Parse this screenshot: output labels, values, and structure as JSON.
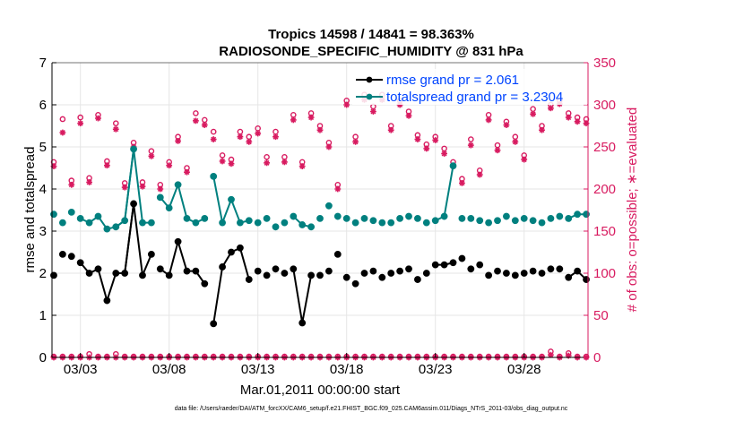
{
  "chart_data": {
    "type": "line",
    "title_line1": "Tropics 14598 / 14841 = 98.363%",
    "title_line2": "RADIOSONDE_SPECIFIC_HUMIDITY @ 831 hPa",
    "xlabel": "Mar.01,2011 00:00:00 start",
    "ylabel_left": "rmse and totalspread",
    "ylabel_right": "# of obs: o=possible; ∗=evaluated",
    "footer": "data file: /Users/raeder/DAI/ATM_forcXX/CAM6_setup/f.e21.FHIST_BGC.f09_025.CAM6assim.011/Diags_NTrS_2011-03/obs_diag_output.nc",
    "xlim": [
      1.4,
      31.6
    ],
    "ylim_left": [
      0,
      7
    ],
    "ylim_right": [
      0,
      350
    ],
    "x_ticks": [
      3,
      8,
      13,
      18,
      23,
      28
    ],
    "x_tick_labels": [
      "03/03",
      "03/08",
      "03/13",
      "03/18",
      "03/23",
      "03/28"
    ],
    "yleft_ticks": [
      0,
      1,
      2,
      3,
      4,
      5,
      6,
      7
    ],
    "yleft_tick_labels": [
      "0",
      "1",
      "2",
      "3",
      "4",
      "5",
      "6",
      "7"
    ],
    "yright_ticks": [
      0,
      50,
      100,
      150,
      200,
      250,
      300,
      350
    ],
    "yright_tick_labels": [
      "0",
      "50",
      "100",
      "150",
      "200",
      "250",
      "300",
      "350"
    ],
    "grid": true,
    "legend_position": "top-right",
    "colors": {
      "rmse": "#000000",
      "spread": "#00807f",
      "obs": "#d81b60",
      "legend_text": "#0044ff",
      "grid": "#e6e6e6"
    },
    "series": [
      {
        "name": "rmse grand pr = 2.061",
        "key": "rmse",
        "x": [
          1.5,
          2,
          2.5,
          3,
          3.5,
          4,
          4.5,
          5,
          5.5,
          6,
          6.5,
          7,
          7.5,
          8,
          8.5,
          9,
          9.5,
          10,
          10.5,
          11,
          11.5,
          12,
          12.5,
          13,
          13.5,
          14,
          14.5,
          15,
          15.5,
          16,
          16.5,
          17,
          17.5,
          18,
          18.5,
          19,
          19.5,
          20,
          20.5,
          21,
          21.5,
          22,
          22.5,
          23,
          23.5,
          24,
          24.5,
          25,
          25.5,
          26,
          26.5,
          27,
          27.5,
          28,
          28.5,
          29,
          29.5,
          30,
          30.5,
          31,
          31.5
        ],
        "y": [
          1.95,
          2.45,
          2.4,
          2.25,
          2.0,
          2.1,
          1.35,
          2.0,
          2.0,
          3.65,
          1.95,
          2.45,
          2.1,
          1.95,
          2.75,
          2.05,
          2.05,
          1.75,
          0.8,
          2.15,
          2.5,
          2.6,
          1.85,
          2.05,
          1.95,
          2.1,
          2.0,
          2.1,
          0.82,
          1.95,
          1.95,
          2.05,
          2.45,
          1.9,
          1.75,
          2.0,
          2.05,
          1.9,
          2.0,
          2.05,
          2.1,
          1.85,
          2.0,
          2.2,
          2.2,
          2.25,
          2.35,
          2.1,
          2.2,
          1.95,
          2.05,
          2.0,
          1.95,
          2.0,
          2.05,
          2.0,
          2.1,
          2.1,
          1.9,
          2.05,
          1.85
        ],
        "connected_segments": [
          [
            3,
            9
          ],
          [
            7,
            11
          ],
          [
            12,
            14
          ],
          [
            14,
            17
          ],
          [
            18,
            22
          ],
          [
            27,
            29
          ],
          [
            43,
            45
          ],
          [
            58,
            62
          ]
        ]
      },
      {
        "name": "totalspread grand pr = 3.2304",
        "key": "spread",
        "x": [
          1.5,
          2,
          2.5,
          3,
          3.5,
          4,
          4.5,
          5,
          5.5,
          6,
          6.5,
          7,
          7.5,
          8,
          8.5,
          9,
          9.5,
          10,
          10.5,
          11,
          11.5,
          12,
          12.5,
          13,
          13.5,
          14,
          14.5,
          15,
          15.5,
          16,
          16.5,
          17,
          17.5,
          18,
          18.5,
          19,
          19.5,
          20,
          20.5,
          21,
          21.5,
          22,
          22.5,
          23,
          23.5,
          24,
          24.5,
          25,
          25.5,
          26,
          26.5,
          27,
          27.5,
          28,
          28.5,
          29,
          29.5,
          30,
          30.5,
          31,
          31.5
        ],
        "y": [
          3.4,
          3.2,
          3.45,
          3.3,
          3.2,
          3.35,
          3.05,
          3.1,
          3.25,
          4.95,
          3.2,
          3.2,
          3.8,
          3.55,
          4.1,
          3.3,
          3.2,
          3.3,
          4.3,
          3.2,
          3.75,
          3.2,
          3.25,
          3.2,
          3.3,
          3.1,
          3.2,
          3.35,
          3.15,
          3.1,
          3.3,
          3.6,
          3.35,
          3.3,
          3.2,
          3.3,
          3.25,
          3.2,
          3.2,
          3.3,
          3.35,
          3.3,
          3.2,
          3.25,
          3.35,
          4.55,
          3.3,
          3.3,
          3.25,
          3.2,
          3.25,
          3.35,
          3.25,
          3.3,
          3.25,
          3.2,
          3.3,
          3.35,
          3.3,
          3.4,
          3.4
        ],
        "connected_segments": [
          [
            3,
            9
          ],
          [
            7,
            11
          ],
          [
            12,
            14
          ],
          [
            14,
            17
          ],
          [
            18,
            22
          ],
          [
            27,
            29
          ],
          [
            43,
            45
          ],
          [
            58,
            62
          ]
        ]
      }
    ],
    "obs_possible": {
      "x": [
        1.5,
        2,
        2.5,
        3,
        3.5,
        4,
        4.5,
        5,
        5.5,
        6,
        6.5,
        7,
        7.5,
        8,
        8.5,
        9,
        9.5,
        10,
        10.5,
        11,
        11.5,
        12,
        12.5,
        13,
        13.5,
        14,
        14.5,
        15,
        15.5,
        16,
        16.5,
        17,
        17.5,
        18,
        18.5,
        19,
        19.5,
        20,
        20.5,
        21,
        21.5,
        22,
        22.5,
        23,
        23.5,
        24,
        24.5,
        25,
        25.5,
        26,
        26.5,
        27,
        27.5,
        28,
        28.5,
        29,
        29.5,
        30,
        30.5,
        31,
        31.5
      ],
      "y": [
        232,
        283,
        210,
        285,
        213,
        288,
        233,
        278,
        207,
        255,
        208,
        245,
        205,
        232,
        262,
        225,
        290,
        282,
        268,
        240,
        235,
        268,
        262,
        272,
        238,
        268,
        238,
        288,
        232,
        290,
        275,
        255,
        205,
        305,
        262,
        312,
        298,
        312,
        275,
        305,
        292,
        264,
        253,
        262,
        248,
        232,
        212,
        259,
        222,
        288,
        252,
        280,
        262,
        240,
        295,
        275,
        300,
        305,
        290,
        285,
        283
      ]
    },
    "obs_evaluated": {
      "x": [
        1.5,
        2,
        2.5,
        3,
        3.5,
        4,
        4.5,
        5,
        5.5,
        6,
        6.5,
        7,
        7.5,
        8,
        8.5,
        9,
        9.5,
        10,
        10.5,
        11,
        11.5,
        12,
        12.5,
        13,
        13.5,
        14,
        14.5,
        15,
        15.5,
        16,
        16.5,
        17,
        17.5,
        18,
        18.5,
        19,
        19.5,
        20,
        20.5,
        21,
        21.5,
        22,
        22.5,
        23,
        23.5,
        24,
        24.5,
        25,
        25.5,
        26,
        26.5,
        27,
        27.5,
        28,
        28.5,
        29,
        29.5,
        30,
        30.5,
        31,
        31.5
      ],
      "y": [
        227,
        267,
        205,
        278,
        208,
        284,
        228,
        271,
        202,
        250,
        203,
        239,
        200,
        228,
        257,
        220,
        281,
        276,
        259,
        233,
        230,
        262,
        256,
        266,
        231,
        262,
        232,
        282,
        227,
        285,
        270,
        250,
        200,
        300,
        256,
        306,
        292,
        306,
        270,
        300,
        287,
        259,
        248,
        258,
        242,
        227,
        207,
        252,
        217,
        282,
        246,
        276,
        256,
        235,
        289,
        270,
        296,
        301,
        285,
        280,
        278
      ]
    },
    "obs_low_possible": {
      "x": [
        1.5,
        2,
        2.5,
        3,
        3.5,
        4,
        4.5,
        5,
        5.5,
        6,
        6.5,
        7,
        7.5,
        8,
        8.5,
        9,
        9.5,
        10,
        10.5,
        11,
        11.5,
        12,
        12.5,
        13,
        13.5,
        14,
        14.5,
        15,
        15.5,
        16,
        16.5,
        17,
        17.5,
        18,
        18.5,
        19,
        19.5,
        20,
        20.5,
        21,
        21.5,
        22,
        22.5,
        23,
        23.5,
        24,
        24.5,
        25,
        25.5,
        26,
        26.5,
        27,
        27.5,
        28,
        28.5,
        29,
        29.5,
        30,
        30.5,
        31,
        31.5
      ],
      "y": [
        1,
        1,
        1,
        1,
        4,
        1,
        1,
        4,
        1,
        1,
        1,
        1,
        1,
        1,
        1,
        1,
        1,
        1,
        1,
        1,
        1,
        1,
        1,
        1,
        1,
        1,
        1,
        1,
        1,
        1,
        1,
        1,
        1,
        1,
        1,
        1,
        1,
        1,
        1,
        1,
        1,
        1,
        1,
        1,
        1,
        1,
        1,
        1,
        1,
        1,
        1,
        1,
        1,
        1,
        1,
        1,
        7,
        1,
        5,
        1,
        1
      ]
    },
    "obs_low_evaluated": {
      "x": [
        1.5,
        2,
        2.5,
        3,
        3.5,
        4,
        4.5,
        5,
        5.5,
        6,
        6.5,
        7,
        7.5,
        8,
        8.5,
        9,
        9.5,
        10,
        10.5,
        11,
        11.5,
        12,
        12.5,
        13,
        13.5,
        14,
        14.5,
        15,
        15.5,
        16,
        16.5,
        17,
        17.5,
        18,
        18.5,
        19,
        19.5,
        20,
        20.5,
        21,
        21.5,
        22,
        22.5,
        23,
        23.5,
        24,
        24.5,
        25,
        25.5,
        26,
        26.5,
        27,
        27.5,
        28,
        28.5,
        29,
        29.5,
        30,
        30.5,
        31,
        31.5
      ],
      "y": [
        0,
        0,
        0,
        0,
        0,
        0,
        0,
        0,
        0,
        0,
        0,
        0,
        0,
        0,
        0,
        0,
        0,
        0,
        0,
        0,
        0,
        0,
        0,
        0,
        0,
        0,
        0,
        0,
        0,
        0,
        0,
        0,
        0,
        0,
        0,
        0,
        0,
        0,
        0,
        0,
        0,
        0,
        0,
        0,
        0,
        0,
        0,
        0,
        0,
        0,
        0,
        0,
        0,
        0,
        0,
        0,
        3,
        0,
        2,
        0,
        0
      ]
    }
  }
}
